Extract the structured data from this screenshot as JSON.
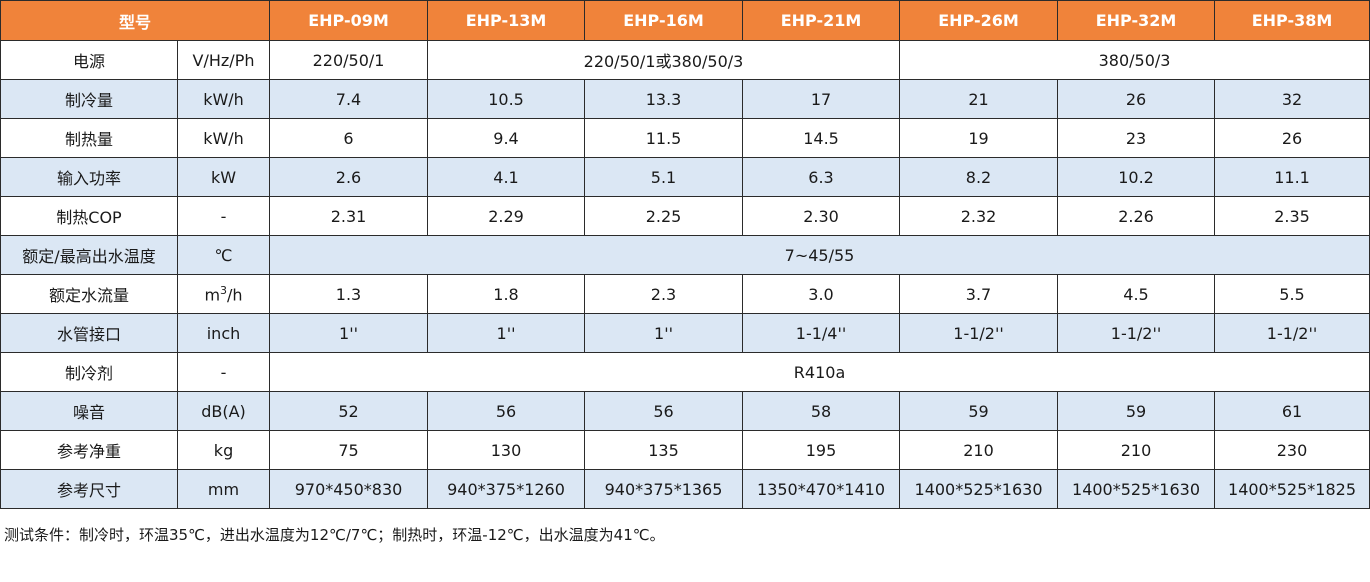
{
  "header": {
    "model_label": "型号",
    "models": [
      "EHP-09M",
      "EHP-13M",
      "EHP-16M",
      "EHP-21M",
      "EHP-26M",
      "EHP-32M",
      "EHP-38M"
    ]
  },
  "rows": {
    "power_supply": {
      "label": "电源",
      "unit": "V/Hz/Ph",
      "v09": "220/50/1",
      "v13_21": "220/50/1或380/50/3",
      "v26_38": "380/50/3"
    },
    "cooling": {
      "label": "制冷量",
      "unit": "kW/h",
      "values": [
        "7.4",
        "10.5",
        "13.3",
        "17",
        "21",
        "26",
        "32"
      ]
    },
    "heating": {
      "label": "制热量",
      "unit": "kW/h",
      "values": [
        "6",
        "9.4",
        "11.5",
        "14.5",
        "19",
        "23",
        "26"
      ]
    },
    "input_power": {
      "label": "输入功率",
      "unit": "kW",
      "values": [
        "2.6",
        "4.1",
        "5.1",
        "6.3",
        "8.2",
        "10.2",
        "11.1"
      ]
    },
    "cop": {
      "label": "制热COP",
      "unit": "-",
      "values": [
        "2.31",
        "2.29",
        "2.25",
        "2.30",
        "2.32",
        "2.26",
        "2.35"
      ]
    },
    "water_temp": {
      "label": "额定/最高出水温度",
      "unit": "℃",
      "value": "7~45/55"
    },
    "water_flow": {
      "label": "额定水流量",
      "unit_base": "m",
      "unit_sup": "3",
      "unit_tail": "/h",
      "values": [
        "1.3",
        "1.8",
        "2.3",
        "3.0",
        "3.7",
        "4.5",
        "5.5"
      ]
    },
    "pipe": {
      "label": "水管接口",
      "unit": "inch",
      "values": [
        "1''",
        "1''",
        "1''",
        "1-1/4''",
        "1-1/2''",
        "1-1/2''",
        "1-1/2''"
      ]
    },
    "refrigerant": {
      "label": "制冷剂",
      "unit": "-",
      "value": "R410a"
    },
    "noise": {
      "label": "噪音",
      "unit": "dB(A)",
      "values": [
        "52",
        "56",
        "56",
        "58",
        "59",
        "59",
        "61"
      ]
    },
    "weight": {
      "label": "参考净重",
      "unit": "kg",
      "values": [
        "75",
        "130",
        "135",
        "195",
        "210",
        "210",
        "230"
      ]
    },
    "size": {
      "label": "参考尺寸",
      "unit": "mm",
      "values": [
        "970*450*830",
        "940*375*1260",
        "940*375*1365",
        "1350*470*1410",
        "1400*525*1630",
        "1400*525*1630",
        "1400*525*1825"
      ]
    }
  },
  "footnote": "测试条件：制冷时，环温35℃，进出水温度为12℃/7℃；制热时，环温-12℃，出水温度为41℃。",
  "colors": {
    "header_bg": "#f0833a",
    "stripe_bg": "#dbe7f4"
  }
}
